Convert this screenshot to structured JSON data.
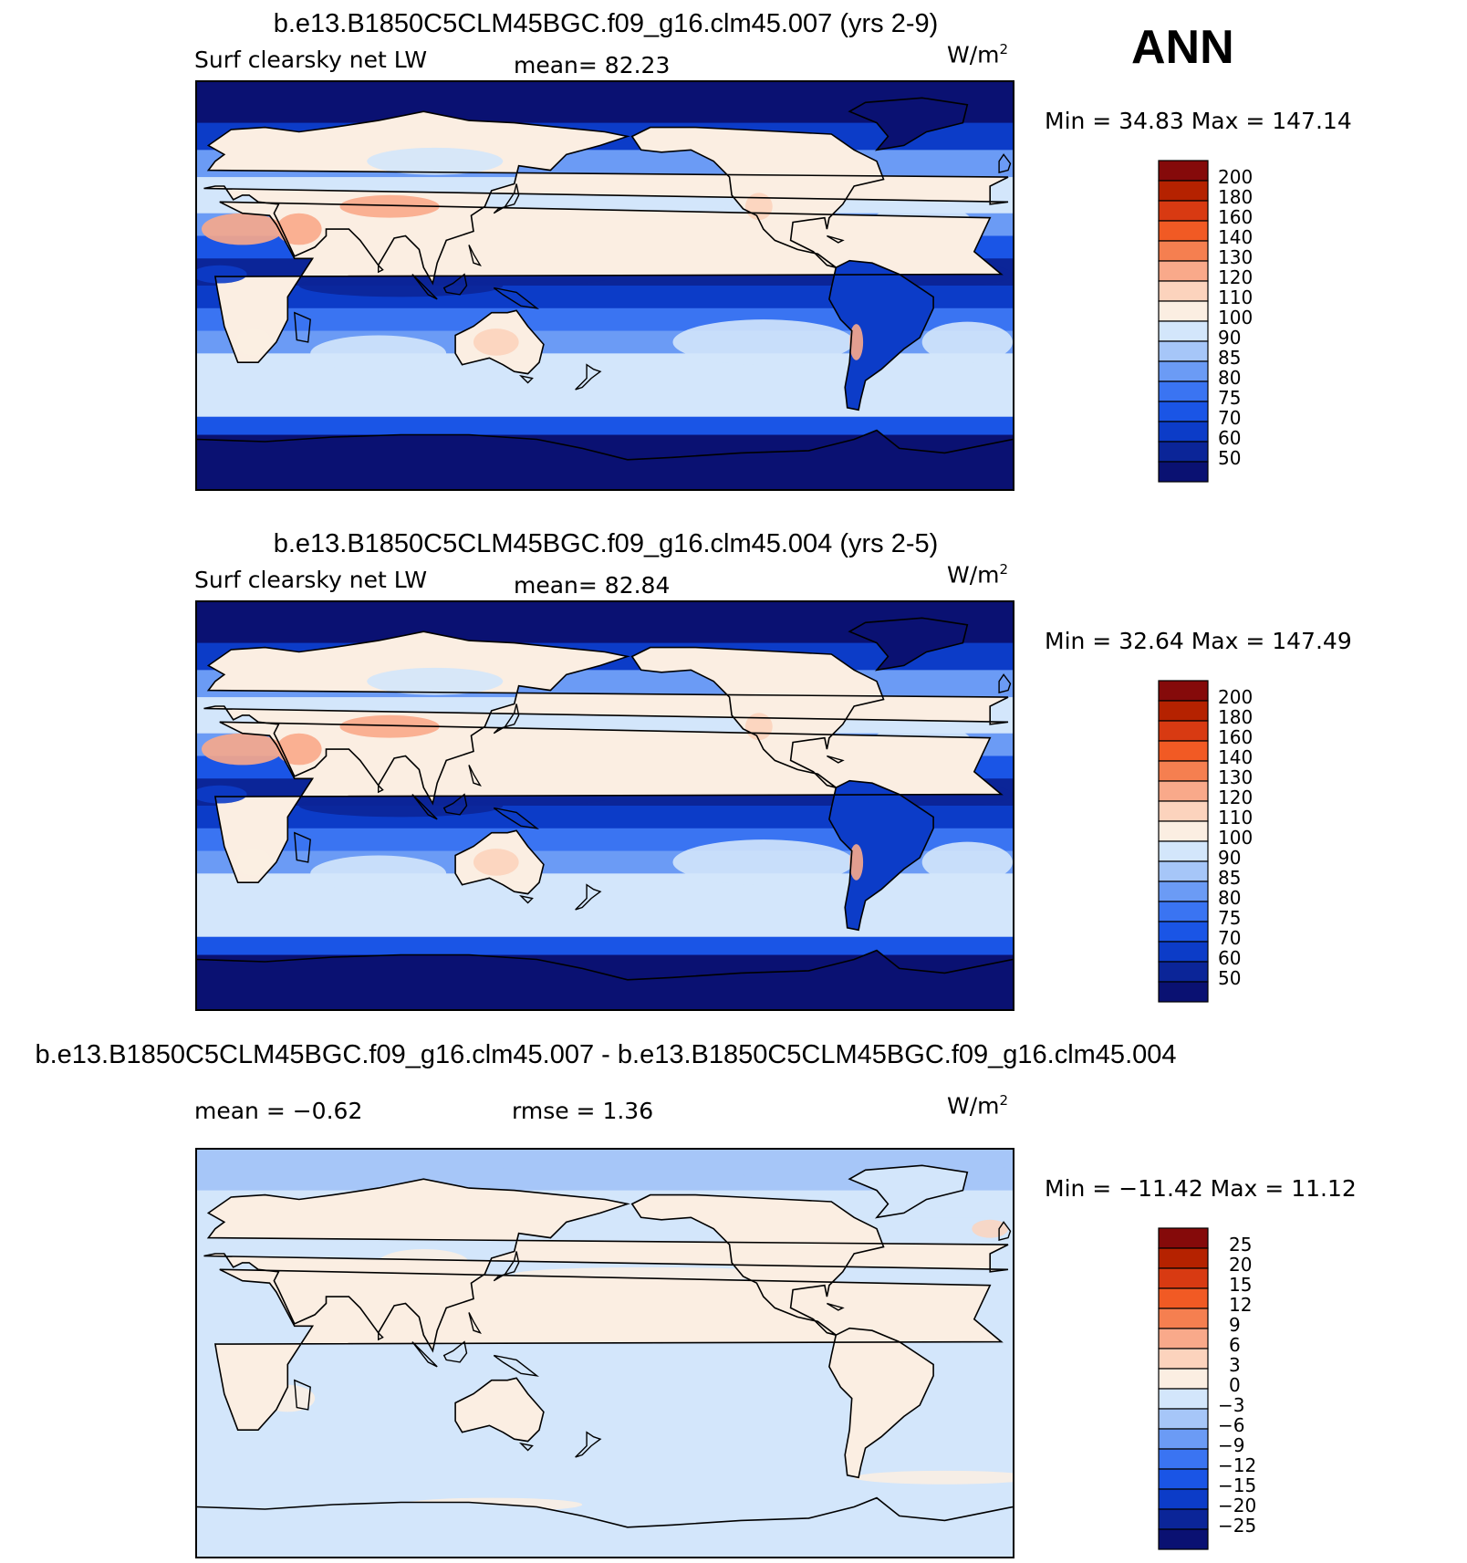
{
  "season": "ANN",
  "units_base": "W/m",
  "units_exp": "2",
  "panels": [
    {
      "id": "test",
      "title": "b.e13.B1850C5CLM45BGC.f09_g16.clm45.007 (yrs 2-9)",
      "variable": "Surf clearsky net LW",
      "stat1": "mean=   82.23",
      "stat2": "",
      "minmax": "Min =   34.83 Max = 147.14",
      "top": 0
    },
    {
      "id": "control",
      "title": "b.e13.B1850C5CLM45BGC.f09_g16.clm45.004 (yrs 2-5)",
      "variable": "Surf clearsky net LW",
      "stat1": "mean=   82.84",
      "stat2": "",
      "minmax": "Min =   32.64 Max = 147.49",
      "top": 570
    },
    {
      "id": "diff",
      "title": "b.e13.B1850C5CLM45BGC.f09_g16.clm45.007 - b.e13.B1850C5CLM45BGC.f09_g16.clm45.004",
      "variable": "mean =   −0.62",
      "stat1": "",
      "stat2": "rmse =    1.36",
      "minmax": "Min = −11.42 Max =   11.12",
      "top": 1140
    }
  ],
  "chart_data": [
    {
      "type": "heatmap",
      "panel": "test",
      "title": "b.e13.B1850C5CLM45BGC.f09_g16.clm45.007 (yrs 2-9)",
      "variable": "Surf clearsky net LW",
      "units": "W/m2",
      "mean": 82.23,
      "min": 34.83,
      "max": 147.14,
      "contour_levels": [
        50,
        60,
        70,
        75,
        80,
        85,
        90,
        100,
        110,
        120,
        130,
        140,
        160,
        180,
        200
      ],
      "colorbar_colors": [
        "#0a1172",
        "#0b2598",
        "#0c3cc8",
        "#1a55e6",
        "#3a74f2",
        "#6b9bf5",
        "#a6c6f8",
        "#d3e6fb",
        "#fbeee2",
        "#fcd3bd",
        "#f9a98a",
        "#f57f50",
        "#f15a24",
        "#d83a12",
        "#b52200",
        "#850a0a"
      ],
      "projection": "cylindrical equidistant, centered 180"
    },
    {
      "type": "heatmap",
      "panel": "control",
      "title": "b.e13.B1850C5CLM45BGC.f09_g16.clm45.004 (yrs 2-5)",
      "variable": "Surf clearsky net LW",
      "units": "W/m2",
      "mean": 82.84,
      "min": 32.64,
      "max": 147.49,
      "contour_levels": [
        50,
        60,
        70,
        75,
        80,
        85,
        90,
        100,
        110,
        120,
        130,
        140,
        160,
        180,
        200
      ],
      "colorbar_colors": [
        "#0a1172",
        "#0b2598",
        "#0c3cc8",
        "#1a55e6",
        "#3a74f2",
        "#6b9bf5",
        "#a6c6f8",
        "#d3e6fb",
        "#fbeee2",
        "#fcd3bd",
        "#f9a98a",
        "#f57f50",
        "#f15a24",
        "#d83a12",
        "#b52200",
        "#850a0a"
      ],
      "projection": "cylindrical equidistant, centered 180"
    },
    {
      "type": "heatmap",
      "panel": "diff",
      "title": "b.e13.B1850C5CLM45BGC.f09_g16.clm45.007 - b.e13.B1850C5CLM45BGC.f09_g16.clm45.004",
      "units": "W/m2",
      "mean": -0.62,
      "rmse": 1.36,
      "min": -11.42,
      "max": 11.12,
      "contour_levels": [
        -25,
        -20,
        -15,
        -12,
        -9,
        -6,
        -3,
        0,
        3,
        6,
        9,
        12,
        15,
        20,
        25
      ],
      "contour_labels": [
        "−25",
        "−20",
        "−15",
        "−12",
        "−9",
        "−6",
        "−3",
        "0",
        "3",
        "6",
        "9",
        "12",
        "15",
        "20",
        "25"
      ],
      "colorbar_colors": [
        "#0a1172",
        "#0b2598",
        "#0c3cc8",
        "#1a55e6",
        "#3a74f2",
        "#6b9bf5",
        "#a6c6f8",
        "#d3e6fb",
        "#fbeee2",
        "#fcd3bd",
        "#f9a98a",
        "#f57f50",
        "#f15a24",
        "#d83a12",
        "#b52200",
        "#850a0a"
      ],
      "projection": "cylindrical equidistant, centered 180"
    }
  ]
}
